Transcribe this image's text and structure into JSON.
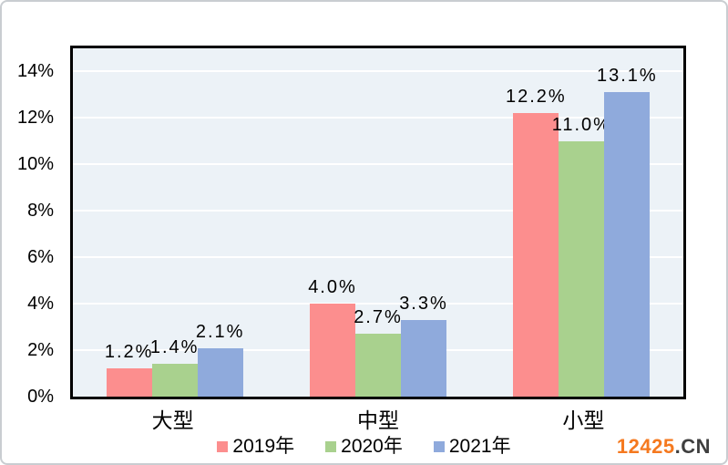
{
  "chart_data": {
    "type": "bar",
    "title": "",
    "xlabel": "",
    "ylabel": "",
    "categories": [
      "大型",
      "中型",
      "小型"
    ],
    "series": [
      {
        "name": "2019年",
        "color": "#FC8E8E",
        "values": [
          1.2,
          4.0,
          12.2
        ],
        "labels": [
          "1.2%",
          "4.0%",
          "12.2%"
        ]
      },
      {
        "name": "2020年",
        "color": "#A9D18E",
        "values": [
          1.4,
          2.7,
          11.0
        ],
        "labels": [
          "1.4%",
          "2.7%",
          "11.0%"
        ]
      },
      {
        "name": "2021年",
        "color": "#8FAADC",
        "values": [
          2.1,
          3.3,
          13.1
        ],
        "labels": [
          "2.1%",
          "3.3%",
          "13.1%"
        ]
      }
    ],
    "ylim": [
      0,
      15
    ],
    "yticks": [
      {
        "value": 0,
        "label": "0%"
      },
      {
        "value": 2,
        "label": "2%"
      },
      {
        "value": 4,
        "label": "4%"
      },
      {
        "value": 6,
        "label": "6%"
      },
      {
        "value": 8,
        "label": "8%"
      },
      {
        "value": 10,
        "label": "10%"
      },
      {
        "value": 12,
        "label": "12%"
      },
      {
        "value": 14,
        "label": "14%"
      }
    ],
    "grid": true,
    "legend_position": "bottom",
    "plot_bg_color": "#ECF2F7",
    "gridline_color": "#FFFFFF",
    "axis_color": "#000000"
  },
  "watermark": {
    "brand": "12425",
    "suffix": ".CN",
    "brand_color": "#F5791F",
    "suffix_color": "#3F3F3F"
  }
}
